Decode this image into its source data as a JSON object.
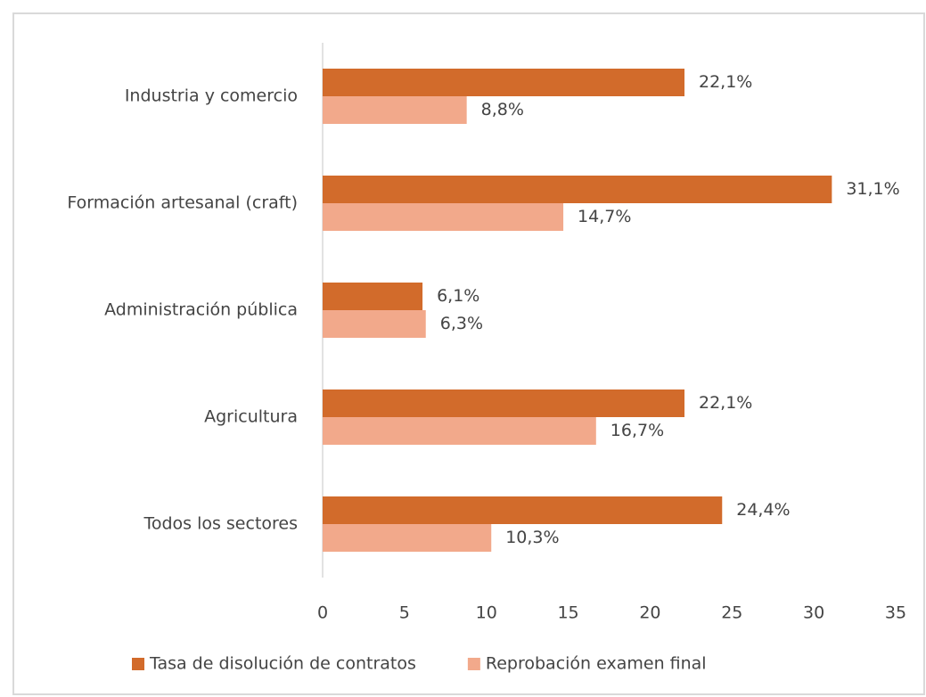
{
  "chart_data": {
    "type": "barh",
    "categories": [
      "Industria y comercio",
      "Formación artesanal (craft)",
      "Administración pública",
      "Agricultura",
      "Todos los sectores"
    ],
    "series": [
      {
        "name": "Tasa de disolución de contratos",
        "color": "#d26b2b",
        "values": [
          22.1,
          31.1,
          6.1,
          22.1,
          24.4
        ],
        "value_labels": [
          "22,1%",
          "31,1%",
          "6,1%",
          "22,1%",
          "24,4%"
        ]
      },
      {
        "name": "Reprobación examen final",
        "color": "#f2a98b",
        "values": [
          8.8,
          14.7,
          6.3,
          16.7,
          10.3
        ],
        "value_labels": [
          "8,8%",
          "14,7%",
          "6,3%",
          "16,7%",
          "10,3%"
        ]
      }
    ],
    "xlim": [
      0,
      35
    ],
    "xticks": [
      0,
      5,
      10,
      15,
      20,
      25,
      30,
      35
    ],
    "grid": false,
    "legend": "bottom"
  }
}
